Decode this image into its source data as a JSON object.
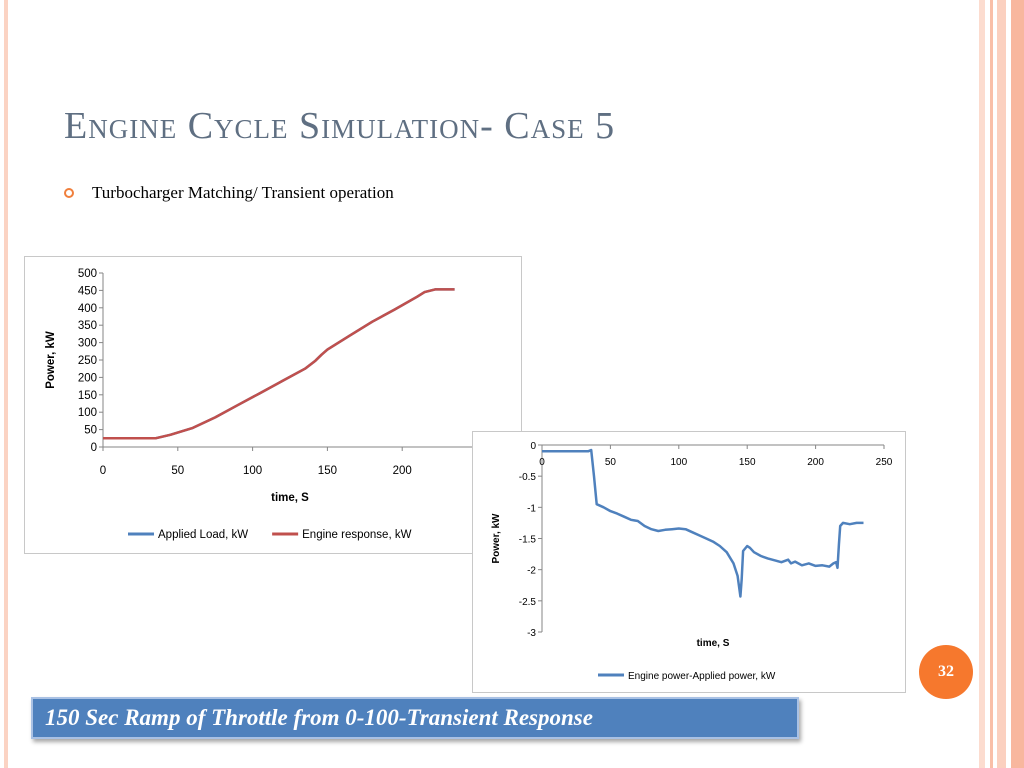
{
  "slide": {
    "title": "Engine Cycle Simulation- Case 5",
    "bullet": "Turbocharger Matching/ Transient operation",
    "page_number": "32",
    "caption": "150 Sec Ramp of Throttle from 0-100-Transient Response",
    "accent_color": "#f6782d",
    "caption_color": "#4f81bd"
  },
  "chart_data": [
    {
      "type": "line",
      "xlabel": "time, S",
      "ylabel": "Power, kW",
      "xlim": [
        0,
        250
      ],
      "ylim": [
        0,
        500
      ],
      "x_ticks": [
        "0",
        "50",
        "100",
        "150",
        "200"
      ],
      "y_ticks": [
        "500",
        "450",
        "400",
        "350",
        "300",
        "250",
        "200",
        "150",
        "100",
        "50",
        "0"
      ],
      "grid": false,
      "legend_position": "bottom",
      "series": [
        {
          "name": "Applied Load, kW",
          "color": "#4f81bd",
          "x": [
            0,
            30,
            35,
            45,
            60,
            75,
            90,
            105,
            120,
            135,
            142,
            146,
            150,
            165,
            180,
            195,
            210,
            215,
            222,
            235
          ],
          "y": [
            25,
            25,
            25,
            35,
            55,
            85,
            120,
            155,
            190,
            225,
            248,
            265,
            280,
            320,
            360,
            395,
            432,
            445,
            453,
            453
          ]
        },
        {
          "name": "Engine response, kW",
          "color": "#c0504d",
          "x": [
            0,
            30,
            35,
            45,
            60,
            75,
            90,
            105,
            120,
            135,
            142,
            146,
            150,
            165,
            180,
            195,
            210,
            215,
            222,
            235
          ],
          "y": [
            25,
            25,
            25,
            35,
            55,
            85,
            120,
            155,
            190,
            225,
            248,
            265,
            280,
            320,
            360,
            395,
            432,
            445,
            453,
            453
          ]
        }
      ]
    },
    {
      "type": "line",
      "xlabel": "time, S",
      "ylabel": "Power, kW",
      "xlim": [
        0,
        250
      ],
      "ylim": [
        -3,
        0
      ],
      "x_ticks": [
        "0",
        "50",
        "100",
        "150",
        "200",
        "250"
      ],
      "y_ticks": [
        "0",
        "-0.5",
        "-1",
        "-1.5",
        "-2",
        "-2.5",
        "-3"
      ],
      "grid": false,
      "legend_position": "bottom",
      "series": [
        {
          "name": "Engine power-Applied power, kW",
          "color": "#4f81bd",
          "x": [
            0,
            30,
            34,
            36,
            38,
            40,
            45,
            50,
            55,
            60,
            65,
            70,
            75,
            80,
            85,
            90,
            95,
            100,
            105,
            110,
            115,
            120,
            125,
            130,
            135,
            140,
            143,
            145,
            146,
            147,
            150,
            152,
            155,
            160,
            165,
            170,
            175,
            180,
            182,
            185,
            190,
            195,
            200,
            205,
            210,
            213,
            215,
            216,
            217,
            218,
            220,
            225,
            230,
            235
          ],
          "y": [
            -0.1,
            -0.1,
            -0.1,
            -0.08,
            -0.5,
            -0.95,
            -1.0,
            -1.06,
            -1.1,
            -1.15,
            -1.2,
            -1.22,
            -1.3,
            -1.35,
            -1.38,
            -1.36,
            -1.35,
            -1.34,
            -1.35,
            -1.4,
            -1.45,
            -1.5,
            -1.55,
            -1.62,
            -1.72,
            -1.9,
            -2.1,
            -2.43,
            -2.15,
            -1.7,
            -1.62,
            -1.65,
            -1.72,
            -1.78,
            -1.82,
            -1.85,
            -1.88,
            -1.84,
            -1.9,
            -1.87,
            -1.93,
            -1.9,
            -1.94,
            -1.93,
            -1.95,
            -1.9,
            -1.88,
            -1.97,
            -1.6,
            -1.3,
            -1.25,
            -1.27,
            -1.25,
            -1.25
          ]
        }
      ]
    }
  ]
}
